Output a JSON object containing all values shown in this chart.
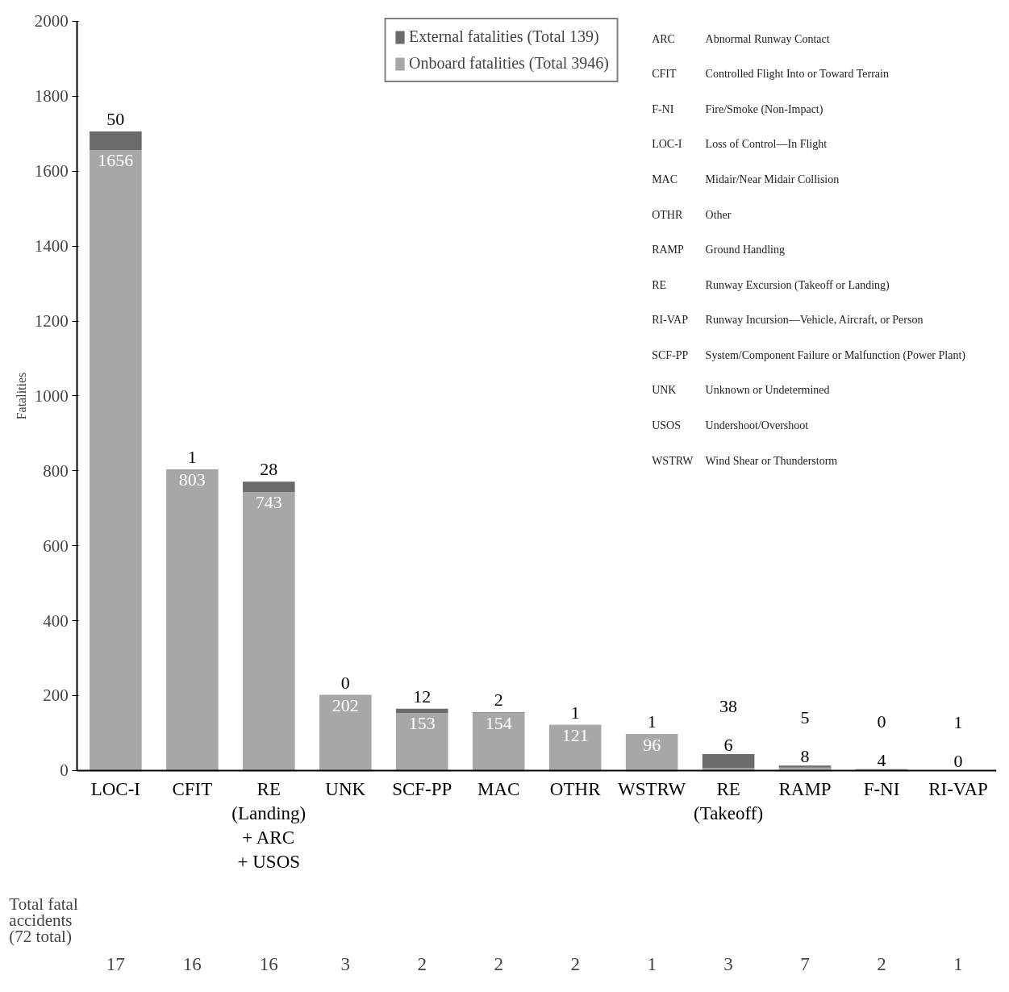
{
  "chart_data": {
    "type": "bar",
    "stacked": true,
    "ylabel": "Fatalities",
    "categories": [
      "LOC-I",
      "CFIT",
      "RE\n(Landing)\n+ ARC\n+ USOS",
      "UNK",
      "SCF-PP",
      "MAC",
      "OTHR",
      "WSTRW",
      "RE\n(Takeoff)",
      "RAMP",
      "F-NI",
      "RI-VAP"
    ],
    "series": [
      {
        "name": "Onboard fatalities (Total 3946)",
        "color": "#a7a7aa",
        "values": [
          1656,
          803,
          743,
          202,
          153,
          154,
          121,
          96,
          6,
          8,
          4,
          0
        ]
      },
      {
        "name": "External fatalities (Total 139)",
        "color": "#6b6b6e",
        "values": [
          50,
          1,
          28,
          0,
          12,
          2,
          1,
          1,
          38,
          5,
          0,
          1
        ]
      }
    ],
    "ylim": [
      0,
      2000
    ],
    "yticks": [
      0,
      200,
      400,
      600,
      800,
      1000,
      1200,
      1400,
      1600,
      1800,
      2000
    ],
    "data_labels": true,
    "legend": "top",
    "grid": false,
    "annotations": [
      "ARC",
      "Abnormal Runway Contact",
      "CFIT",
      "Controlled Flight Into or Toward Terrain",
      "F-NI",
      "Fire/Smoke (Non-Impact)",
      "LOC-I",
      "Loss of Control—In Flight",
      "MAC",
      "Midair/Near Midair Collision",
      "OTHR",
      "Other",
      "RAMP",
      "Ground Handling",
      "RE",
      "Runway Excursion (Takeoff or Landing)",
      "RI-VAP",
      "Runway Incursion—Vehicle, Aircraft, or Person",
      "SCF-PP",
      "System/Component Failure or Malfunction (Power Plant)",
      "UNK",
      "Unknown or Undetermined",
      "USOS",
      "Undershoot/Overshoot",
      "WSTRW",
      "Wind Shear or Thunderstorm",
      "Total fatal\naccidents\n(72 total)",
      "17",
      "16",
      "16",
      "3",
      "2",
      "2",
      "2",
      "1",
      "3",
      "7",
      "2",
      "1"
    ]
  }
}
